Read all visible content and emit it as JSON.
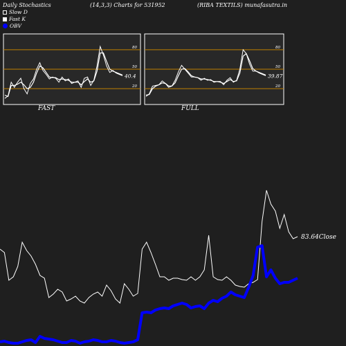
{
  "header": {
    "title": "Daily Stochastics",
    "params": "(14,3,3) Charts for 531952",
    "company": "(RIBA TEXTILS) munafasutra.in"
  },
  "legend": [
    {
      "label": "Slow  D"
    },
    {
      "label": "Fast K"
    },
    {
      "label": "OBV"
    }
  ],
  "colors": {
    "background": "#1f1f1f",
    "level_line": "#c08000",
    "obv": "#0000ff",
    "price": "#ffffff"
  },
  "chart_data": [
    {
      "type": "line",
      "name": "fast-stochastic",
      "title": "FAST",
      "ylim": [
        0,
        100
      ],
      "levels": [
        20,
        50,
        80
      ],
      "last_value_label": "40.4",
      "series": [
        {
          "name": "Fast K",
          "values": [
            5,
            9,
            30,
            22,
            30,
            36,
            20,
            12,
            28,
            35,
            50,
            60,
            48,
            42,
            35,
            38,
            36,
            30,
            38,
            32,
            35,
            28,
            30,
            32,
            22,
            36,
            38,
            25,
            33,
            55,
            85,
            72,
            55,
            45,
            48,
            44,
            42,
            40
          ]
        },
        {
          "name": "Slow  D",
          "values": [
            10,
            8,
            25,
            25,
            27,
            30,
            26,
            20,
            22,
            30,
            44,
            55,
            52,
            45,
            38,
            37,
            37,
            34,
            35,
            34,
            33,
            30,
            30,
            30,
            26,
            31,
            35,
            30,
            32,
            47,
            75,
            75,
            62,
            50,
            47,
            45,
            43,
            41
          ]
        }
      ]
    },
    {
      "type": "line",
      "name": "full-stochastic",
      "title": "FULL",
      "ylim": [
        0,
        100
      ],
      "levels": [
        20,
        50,
        80
      ],
      "last_value_label": "39.87",
      "series": [
        {
          "name": "Fast K",
          "values": [
            8,
            12,
            24,
            25,
            26,
            32,
            28,
            22,
            24,
            33,
            46,
            56,
            50,
            44,
            38,
            38,
            37,
            33,
            36,
            33,
            34,
            30,
            31,
            31,
            26,
            33,
            37,
            30,
            33,
            50,
            80,
            74,
            58,
            47,
            47,
            44,
            42,
            40
          ]
        },
        {
          "name": "Slow  D",
          "values": [
            10,
            11,
            20,
            24,
            26,
            29,
            28,
            24,
            24,
            29,
            40,
            50,
            51,
            46,
            40,
            38,
            37,
            35,
            35,
            34,
            33,
            31,
            31,
            30,
            28,
            31,
            34,
            31,
            32,
            44,
            70,
            74,
            63,
            51,
            47,
            45,
            43,
            41
          ]
        }
      ]
    },
    {
      "type": "line",
      "name": "obv-price",
      "last_value_label": "83.64Close",
      "series": [
        {
          "name": "OBV",
          "values": [
            6,
            7,
            5,
            4,
            4,
            6,
            8,
            9,
            5,
            14,
            11,
            10,
            9,
            7,
            5,
            5,
            8,
            7,
            4,
            6,
            7,
            9,
            8,
            6,
            6,
            8,
            7,
            5,
            4,
            5,
            6,
            9,
            48,
            49,
            48,
            52,
            54,
            55,
            54,
            58,
            60,
            62,
            60,
            55,
            57,
            58,
            54,
            62,
            66,
            64,
            69,
            72,
            78,
            74,
            72,
            70,
            85,
            102,
            143,
            145,
            100,
            110,
            98,
            90,
            92,
            92,
            95,
            98
          ]
        },
        {
          "name": "Price",
          "values": [
            140,
            135,
            95,
            100,
            115,
            150,
            138,
            130,
            118,
            102,
            98,
            70,
            75,
            82,
            78,
            65,
            68,
            72,
            65,
            62,
            70,
            75,
            78,
            72,
            88,
            80,
            68,
            62,
            90,
            82,
            72,
            76,
            140,
            150,
            135,
            118,
            100,
            100,
            95,
            98,
            98,
            96,
            95,
            100,
            95,
            100,
            110,
            160,
            100,
            96,
            95,
            100,
            95,
            88,
            86,
            85,
            90,
            92,
            96,
            180,
            225,
            205,
            195,
            170,
            190,
            165,
            155,
            158
          ]
        }
      ]
    }
  ]
}
